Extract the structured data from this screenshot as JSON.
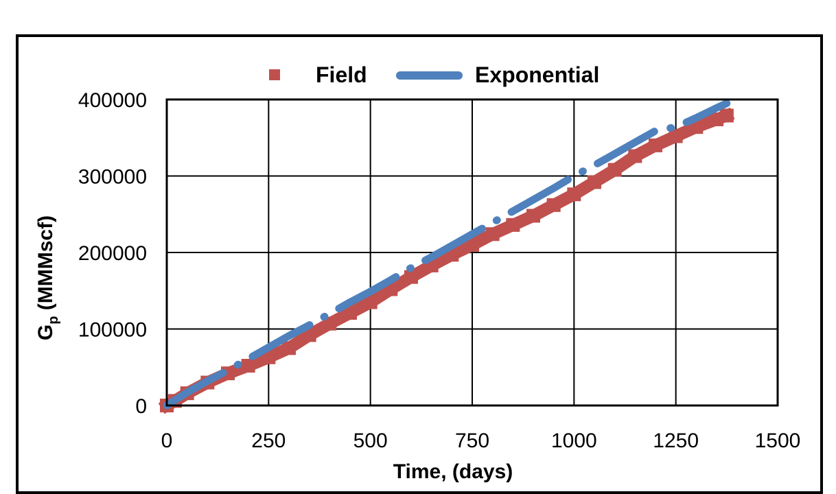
{
  "chart_data": {
    "type": "scatter",
    "title": "",
    "xlabel": "Time, (days)",
    "ylabel_main": "G",
    "ylabel_sub": "p",
    "ylabel_rest": " (MMMscf)",
    "xlim": [
      0,
      1500
    ],
    "ylim": [
      0,
      400000
    ],
    "x_ticks": [
      0,
      250,
      500,
      750,
      1000,
      1250,
      1500
    ],
    "y_ticks": [
      0,
      100000,
      200000,
      300000,
      400000
    ],
    "grid": true,
    "legend_position": "top",
    "series": [
      {
        "name": "Field",
        "marker": "square",
        "color": "#C0504D",
        "x": [
          0,
          20,
          50,
          100,
          150,
          200,
          250,
          300,
          350,
          400,
          450,
          500,
          550,
          600,
          650,
          700,
          750,
          800,
          850,
          900,
          950,
          1000,
          1050,
          1100,
          1150,
          1200,
          1250,
          1300,
          1350,
          1375
        ],
        "y": [
          0,
          6000,
          16000,
          30000,
          42000,
          52000,
          63000,
          75000,
          92000,
          107000,
          121000,
          135000,
          152000,
          168000,
          183000,
          197000,
          210000,
          224000,
          236000,
          248000,
          262000,
          276000,
          292000,
          308000,
          326000,
          340000,
          352000,
          364000,
          374000,
          379000
        ]
      },
      {
        "name": "Exponential",
        "marker": "dashed-line",
        "color": "#4F81BD",
        "x": [
          0,
          20,
          50,
          100,
          150,
          200,
          250,
          300,
          350,
          400,
          450,
          500,
          550,
          600,
          650,
          700,
          750,
          800,
          850,
          900,
          950,
          1000,
          1050,
          1100,
          1150,
          1200,
          1250,
          1300,
          1350,
          1375
        ],
        "y": [
          0,
          7000,
          17000,
          32000,
          46000,
          61000,
          76000,
          91000,
          105000,
          120000,
          135000,
          149000,
          164000,
          180000,
          194000,
          209000,
          224000,
          239000,
          254000,
          269000,
          284000,
          300000,
          314000,
          329000,
          344000,
          359000,
          364000,
          376000,
          389000,
          395000
        ]
      }
    ]
  }
}
